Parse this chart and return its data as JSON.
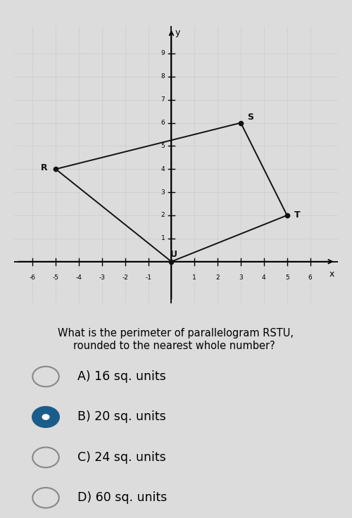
{
  "R": [
    -5,
    4
  ],
  "S": [
    3,
    6
  ],
  "T": [
    5,
    2
  ],
  "U": [
    0,
    0
  ],
  "xlim": [
    -6.8,
    7.2
  ],
  "ylim": [
    -1.8,
    10.2
  ],
  "xtick_vals": [
    -6,
    -5,
    -4,
    -3,
    -2,
    -1,
    1,
    2,
    3,
    4,
    5,
    6
  ],
  "ytick_vals": [
    1,
    2,
    3,
    4,
    5,
    6,
    7,
    8,
    9
  ],
  "bg_color": "#dcdcdc",
  "grid_color": "#a8a8c0",
  "polygon_color": "#111111",
  "point_color": "#111111",
  "label_color": "#111111",
  "choices": [
    "A) 16 sq. units",
    "B) 20 sq. units",
    "C) 24 sq. units",
    "D) 60 sq. units"
  ],
  "selected": 1,
  "question_text": "What is the perimeter of parallelogram RSTU,\nrounded to the nearest whole number? ​",
  "question_fontsize": 10.5,
  "choice_fontsize": 12.5,
  "radio_unselected_color": "#888888",
  "radio_selected_color": "#1a5c8a",
  "radio_selected_fill": "#1a5c8a"
}
